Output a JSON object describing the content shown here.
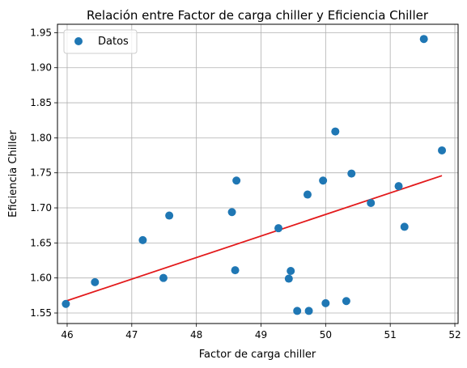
{
  "chart_data": {
    "type": "scatter",
    "title": "Relación entre Factor de carga chiller  y Eficiencia Chiller",
    "xlabel": "Factor de carga chiller",
    "ylabel": "Eficiencia Chiller",
    "xlim": [
      45.85,
      52.05
    ],
    "ylim": [
      1.535,
      1.962
    ],
    "xticks": [
      46,
      47,
      48,
      49,
      50,
      51,
      52
    ],
    "yticks": [
      1.55,
      1.6,
      1.65,
      1.7,
      1.75,
      1.8,
      1.85,
      1.9,
      1.95
    ],
    "ytick_labels": [
      "1.55",
      "1.60",
      "1.65",
      "1.70",
      "1.75",
      "1.80",
      "1.85",
      "1.90",
      "1.95"
    ],
    "grid": true,
    "legend_position": "top-left",
    "series": [
      {
        "name": "Datos",
        "color": "#1f77b4",
        "points": [
          {
            "x": 45.98,
            "y": 1.563
          },
          {
            "x": 46.43,
            "y": 1.594
          },
          {
            "x": 47.17,
            "y": 1.654
          },
          {
            "x": 47.49,
            "y": 1.6
          },
          {
            "x": 47.58,
            "y": 1.689
          },
          {
            "x": 48.55,
            "y": 1.694
          },
          {
            "x": 48.6,
            "y": 1.611
          },
          {
            "x": 48.62,
            "y": 1.739
          },
          {
            "x": 49.27,
            "y": 1.671
          },
          {
            "x": 49.43,
            "y": 1.599
          },
          {
            "x": 49.46,
            "y": 1.61
          },
          {
            "x": 49.56,
            "y": 1.553
          },
          {
            "x": 49.72,
            "y": 1.719
          },
          {
            "x": 49.74,
            "y": 1.553
          },
          {
            "x": 49.96,
            "y": 1.739
          },
          {
            "x": 50.0,
            "y": 1.564
          },
          {
            "x": 50.15,
            "y": 1.809
          },
          {
            "x": 50.32,
            "y": 1.567
          },
          {
            "x": 50.4,
            "y": 1.749
          },
          {
            "x": 50.7,
            "y": 1.707
          },
          {
            "x": 51.13,
            "y": 1.731
          },
          {
            "x": 51.22,
            "y": 1.673
          },
          {
            "x": 51.52,
            "y": 1.941
          },
          {
            "x": 51.8,
            "y": 1.782
          }
        ]
      }
    ],
    "fit_line": {
      "color": "#e31a1c",
      "x": [
        45.98,
        51.8
      ],
      "y": [
        1.567,
        1.746
      ]
    }
  }
}
